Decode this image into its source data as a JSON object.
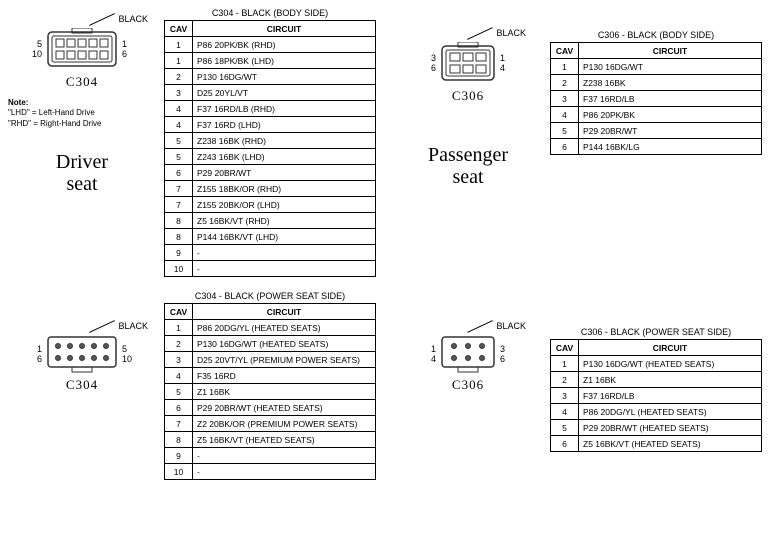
{
  "labels": {
    "black": "BLACK",
    "cav": "CAV",
    "circuit": "CIRCUIT",
    "note_title": "Note:",
    "note_lhd": "\"LHD\" = Left-Hand Drive",
    "note_rhd": "\"RHD\" = Right-Hand Drive"
  },
  "seats": {
    "driver": "Driver\nseat",
    "passenger": "Passenger\nseat"
  },
  "connectors": {
    "c304_body": {
      "name": "C304",
      "title": "C304 - BLACK (BODY SIDE)",
      "pins_left_top": "5",
      "pins_left_bot": "10",
      "pins_right_top": "1",
      "pins_right_bot": "6",
      "shape": "female-10",
      "rows": [
        {
          "cav": "1",
          "circuit": "P86 20PK/BK (RHD)"
        },
        {
          "cav": "1",
          "circuit": "P86 18PK/BK (LHD)"
        },
        {
          "cav": "2",
          "circuit": "P130 16DG/WT"
        },
        {
          "cav": "3",
          "circuit": "D25 20YL/VT"
        },
        {
          "cav": "4",
          "circuit": "F37 16RD/LB (RHD)"
        },
        {
          "cav": "4",
          "circuit": "F37 16RD (LHD)"
        },
        {
          "cav": "5",
          "circuit": "Z238 16BK (RHD)"
        },
        {
          "cav": "5",
          "circuit": "Z243 16BK (LHD)"
        },
        {
          "cav": "6",
          "circuit": "P29 20BR/WT"
        },
        {
          "cav": "7",
          "circuit": "Z155 18BK/OR (RHD)"
        },
        {
          "cav": "7",
          "circuit": "Z155 20BK/OR (LHD)"
        },
        {
          "cav": "8",
          "circuit": "Z5 16BK/VT (RHD)"
        },
        {
          "cav": "8",
          "circuit": "P144 16BK/VT (LHD)"
        },
        {
          "cav": "9",
          "circuit": "-"
        },
        {
          "cav": "10",
          "circuit": "-"
        }
      ]
    },
    "c306_body": {
      "name": "C306",
      "title": "C306 - BLACK (BODY SIDE)",
      "pins_left_top": "3",
      "pins_left_bot": "6",
      "pins_right_top": "1",
      "pins_right_bot": "4",
      "shape": "female-6",
      "rows": [
        {
          "cav": "1",
          "circuit": "P130 16DG/WT"
        },
        {
          "cav": "2",
          "circuit": "Z238 16BK"
        },
        {
          "cav": "3",
          "circuit": "F37 16RD/LB"
        },
        {
          "cav": "4",
          "circuit": "P86 20PK/BK"
        },
        {
          "cav": "5",
          "circuit": "P29 20BR/WT"
        },
        {
          "cav": "6",
          "circuit": "P144 16BK/LG"
        }
      ]
    },
    "c304_power": {
      "name": "C304",
      "title": "C304 - BLACK (POWER SEAT SIDE)",
      "pins_left_top": "1",
      "pins_left_bot": "6",
      "pins_right_top": "5",
      "pins_right_bot": "10",
      "shape": "male-10",
      "rows": [
        {
          "cav": "1",
          "circuit": "P86 20DG/YL (HEATED SEATS)"
        },
        {
          "cav": "2",
          "circuit": "P130 16DG/WT (HEATED SEATS)"
        },
        {
          "cav": "3",
          "circuit": "D25 20VT/YL (PREMIUM POWER SEATS)"
        },
        {
          "cav": "4",
          "circuit": "F35 16RD"
        },
        {
          "cav": "5",
          "circuit": "Z1 16BK"
        },
        {
          "cav": "6",
          "circuit": "P29 20BR/WT (HEATED SEATS)"
        },
        {
          "cav": "7",
          "circuit": "Z2 20BK/OR (PREMIUM POWER SEATS)"
        },
        {
          "cav": "8",
          "circuit": "Z5 16BK/VT (HEATED SEATS)"
        },
        {
          "cav": "9",
          "circuit": "-"
        },
        {
          "cav": "10",
          "circuit": "-"
        }
      ]
    },
    "c306_power": {
      "name": "C306",
      "title": "C306 - BLACK (POWER SEAT SIDE)",
      "pins_left_top": "1",
      "pins_left_bot": "4",
      "pins_right_top": "3",
      "pins_right_bot": "6",
      "shape": "male-6",
      "rows": [
        {
          "cav": "1",
          "circuit": "P130 16DG/WT (HEATED SEATS)"
        },
        {
          "cav": "2",
          "circuit": "Z1 16BK"
        },
        {
          "cav": "3",
          "circuit": "F37 16RD/LB"
        },
        {
          "cav": "4",
          "circuit": "P86 20DG/YL (HEATED SEATS)"
        },
        {
          "cav": "5",
          "circuit": "P29 20BR/WT (HEATED SEATS)"
        },
        {
          "cav": "6",
          "circuit": "Z5 16BK/VT (HEATED SEATS)"
        }
      ]
    }
  },
  "style": {
    "border_color": "#000000",
    "bg_color": "#ffffff",
    "font_small": 9,
    "font_table": 8.5,
    "font_title": 20,
    "connector_stroke": "#333333"
  }
}
